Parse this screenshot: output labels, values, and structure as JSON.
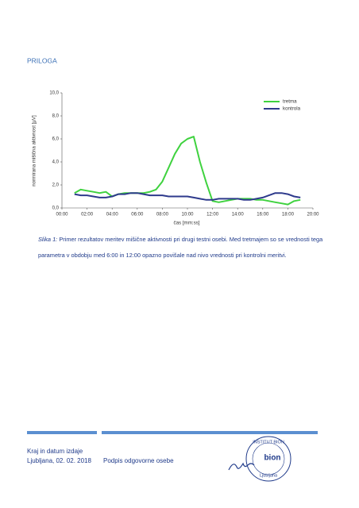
{
  "heading": "PRILOGA",
  "chart_data": {
    "type": "line",
    "ylabel": "normirana mišična aktivnost [µV]",
    "xlabel": "čas [mm:ss]",
    "x": [
      1,
      1.5,
      2,
      2.5,
      3,
      3.5,
      4,
      4.5,
      5,
      5.5,
      6,
      6.5,
      7,
      7.5,
      8,
      8.5,
      9,
      9.5,
      10,
      10.5,
      11,
      11.5,
      12,
      12.5,
      13,
      13.5,
      14,
      14.5,
      15,
      15.5,
      16,
      16.5,
      17,
      17.5,
      18,
      18.5,
      19
    ],
    "series": [
      {
        "name": "tretma",
        "color": "#3fd23f",
        "values": [
          1.3,
          1.6,
          1.5,
          1.4,
          1.3,
          1.4,
          1.0,
          1.2,
          1.3,
          1.3,
          1.3,
          1.3,
          1.4,
          1.6,
          2.3,
          3.5,
          4.7,
          5.6,
          6.0,
          6.2,
          4.0,
          2.2,
          0.6,
          0.5,
          0.6,
          0.7,
          0.8,
          0.8,
          0.8,
          0.7,
          0.7,
          0.6,
          0.5,
          0.4,
          0.3,
          0.6,
          0.7
        ]
      },
      {
        "name": "kontrola",
        "color": "#2e3a8c",
        "values": [
          1.2,
          1.1,
          1.1,
          1.0,
          0.9,
          0.9,
          1.0,
          1.2,
          1.2,
          1.3,
          1.3,
          1.2,
          1.1,
          1.1,
          1.1,
          1.0,
          1.0,
          1.0,
          1.0,
          0.9,
          0.8,
          0.7,
          0.7,
          0.8,
          0.8,
          0.8,
          0.8,
          0.7,
          0.7,
          0.8,
          0.9,
          1.1,
          1.3,
          1.3,
          1.2,
          1.0,
          0.9
        ]
      }
    ],
    "xlim": [
      0,
      20
    ],
    "xticks": [
      {
        "value": 0,
        "label": "00:00"
      },
      {
        "value": 2,
        "label": "02:00"
      },
      {
        "value": 4,
        "label": "04:00"
      },
      {
        "value": 6,
        "label": "06:00"
      },
      {
        "value": 8,
        "label": "08:00"
      },
      {
        "value": 10,
        "label": "10:00"
      },
      {
        "value": 12,
        "label": "12:00"
      },
      {
        "value": 14,
        "label": "14:00"
      },
      {
        "value": 16,
        "label": "16:00"
      },
      {
        "value": 18,
        "label": "18:00"
      },
      {
        "value": 20,
        "label": "20:00"
      }
    ],
    "ylim": [
      0,
      10
    ],
    "yticks": [
      {
        "value": 0,
        "label": "0,0"
      },
      {
        "value": 2,
        "label": "2,0"
      },
      {
        "value": 4,
        "label": "4,0"
      },
      {
        "value": 6,
        "label": "6,0"
      },
      {
        "value": 8,
        "label": "8,0"
      },
      {
        "value": 10,
        "label": "10,0"
      }
    ],
    "grid": false,
    "legend": "top-right"
  },
  "caption": {
    "label": "Slika 1:",
    "text": "Primer rezultatov meritev mišične aktivnosti pri drugi testni osebi. Med tretmajem so se vrednosti tega parametra v obdobju med 6:00 in 12:00 opazno povišale nad nivo vrednosti pri kontrolni meritvi."
  },
  "footer": {
    "place_date_label": "Kraj in datum izdaje",
    "place_date": "Ljubljana, 02. 02. 2018",
    "signature_label": "Podpis odgovorne osebe"
  },
  "logo": {
    "top": "INSTITUT BION",
    "name": "bion",
    "bottom": "Ljubljana"
  }
}
